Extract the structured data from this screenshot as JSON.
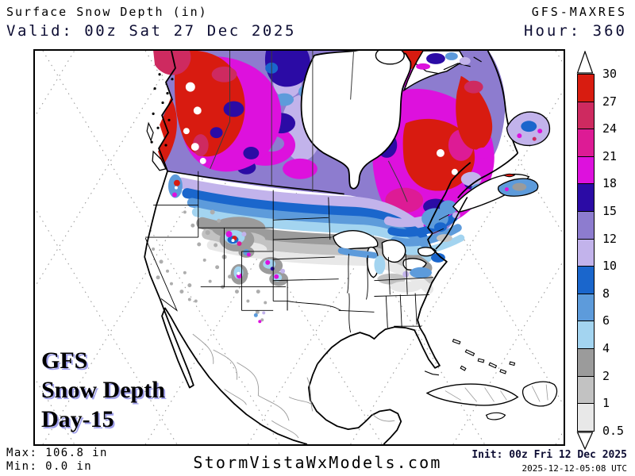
{
  "header": {
    "title": "Surface Snow Depth (in)",
    "valid_label": "Valid: 00z Sat 27 Dec 2025",
    "model_label": "GFS-MAXRES",
    "hour_label": "Hour: 360"
  },
  "map": {
    "overlay_label": {
      "line1": "GFS",
      "line2": "Snow Depth",
      "line3": "Day-15"
    }
  },
  "colorbar": {
    "unit": "in",
    "boundary_labels": [
      "30",
      "27",
      "24",
      "21",
      "18",
      "15",
      "12",
      "10",
      "8",
      "6",
      "4",
      "2",
      "1",
      "0.5"
    ],
    "segment_colors": [
      "#d81c10",
      "#ce2a60",
      "#dd1b95",
      "#dd11dd",
      "#2b0ba5",
      "#8d7ccf",
      "#c2b3eb",
      "#1a66cc",
      "#5d9bdb",
      "#a3d4f0",
      "#9b9b9b",
      "#c2c2c2",
      "#e8e8e8"
    ]
  },
  "footer": {
    "max_label": "Max: 106.8 in",
    "min_label": "Min: 0.0 in",
    "site_label": "StormVistaWxModels.com",
    "init_label": "Init: 00z Fri 12 Dec 2025",
    "generated_label": "2025-12-12-05:08 UTC"
  }
}
